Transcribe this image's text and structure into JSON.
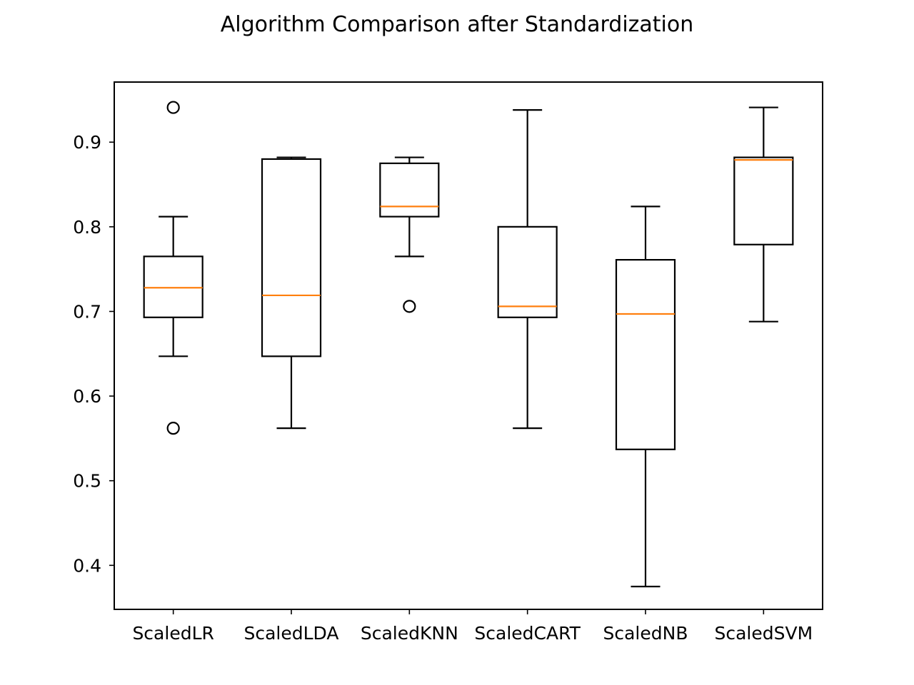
{
  "chart_data": {
    "type": "box",
    "title": "Algorithm Comparison after Standardization",
    "xlabel": "",
    "ylabel": "",
    "ylim": [
      0.348,
      0.971
    ],
    "yticks": [
      0.4,
      0.5,
      0.6,
      0.7,
      0.8,
      0.9
    ],
    "ytick_labels": [
      "0.4",
      "0.5",
      "0.6",
      "0.7",
      "0.8",
      "0.9"
    ],
    "grid": false,
    "colors": {
      "box": "#000000",
      "median": "#ff7f0e",
      "flier": "#000000",
      "background": "#ffffff"
    },
    "categories": [
      "ScaledLR",
      "ScaledLDA",
      "ScaledKNN",
      "ScaledCART",
      "ScaledNB",
      "ScaledSVM"
    ],
    "boxes": [
      {
        "name": "ScaledLR",
        "whisker_low": 0.647,
        "q1": 0.693,
        "median": 0.728,
        "q3": 0.765,
        "whisker_high": 0.812,
        "outliers": [
          0.941,
          0.562
        ]
      },
      {
        "name": "ScaledLDA",
        "whisker_low": 0.562,
        "q1": 0.647,
        "median": 0.719,
        "q3": 0.88,
        "whisker_high": 0.882,
        "outliers": []
      },
      {
        "name": "ScaledKNN",
        "whisker_low": 0.765,
        "q1": 0.812,
        "median": 0.824,
        "q3": 0.875,
        "whisker_high": 0.882,
        "outliers": [
          0.706
        ]
      },
      {
        "name": "ScaledCART",
        "whisker_low": 0.562,
        "q1": 0.693,
        "median": 0.706,
        "q3": 0.8,
        "whisker_high": 0.938,
        "outliers": []
      },
      {
        "name": "ScaledNB",
        "whisker_low": 0.375,
        "q1": 0.537,
        "median": 0.697,
        "q3": 0.761,
        "whisker_high": 0.824,
        "outliers": []
      },
      {
        "name": "ScaledSVM",
        "whisker_low": 0.688,
        "q1": 0.779,
        "median": 0.879,
        "q3": 0.882,
        "whisker_high": 0.941,
        "outliers": []
      }
    ]
  }
}
